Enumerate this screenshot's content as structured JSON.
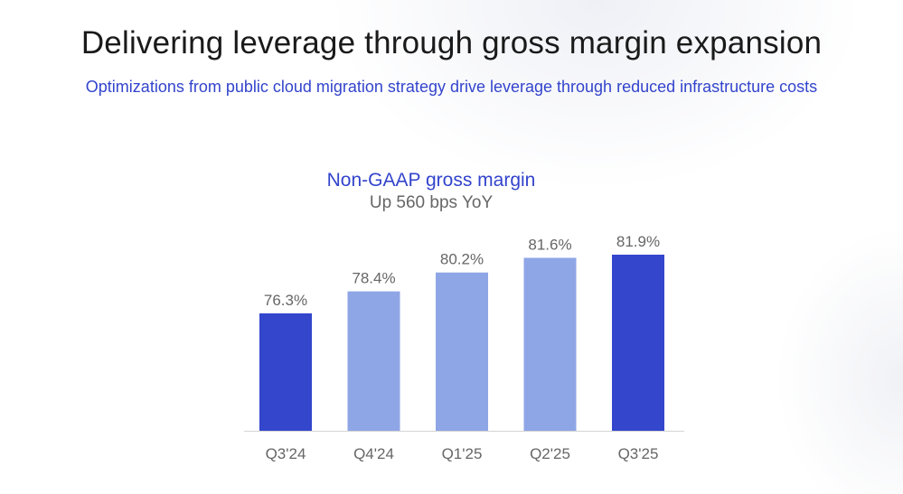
{
  "slide": {
    "title": "Delivering leverage through gross margin expansion",
    "subtitle": "Optimizations from public cloud migration strategy drive leverage through reduced infrastructure costs"
  },
  "chart_data": {
    "type": "bar",
    "title": "Non-GAAP gross margin",
    "subtitle": "Up 560 bps YoY",
    "categories": [
      "Q3'24",
      "Q4'24",
      "Q1'25",
      "Q2'25",
      "Q3'25"
    ],
    "values": [
      76.3,
      78.4,
      80.2,
      81.6,
      81.9
    ],
    "value_labels": [
      "76.3%",
      "78.4%",
      "80.2%",
      "81.6%",
      "81.9%"
    ],
    "highlighted": [
      true,
      false,
      false,
      false,
      true
    ],
    "colors": {
      "highlight": "#3446cc",
      "base": "#8fa6e6",
      "axis": "#d4d4d4",
      "label": "#666666"
    },
    "xlabel": "",
    "ylabel": "",
    "grid": false,
    "legend": "none"
  }
}
